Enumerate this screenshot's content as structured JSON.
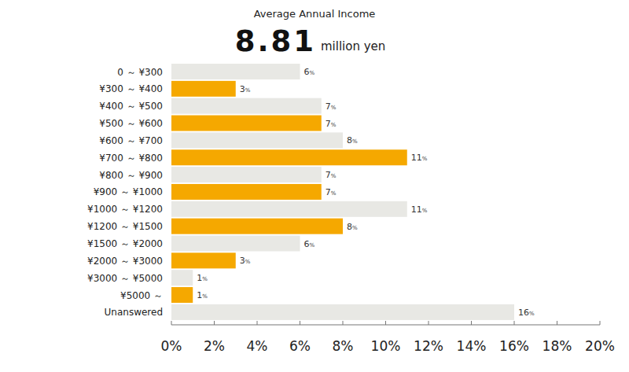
{
  "chart_data": {
    "type": "bar",
    "orientation": "horizontal",
    "title": "Average Annual Income",
    "annotations": [
      {
        "value": 8.81,
        "label": "million yen"
      }
    ],
    "categories": [
      "0 ～ ¥300",
      "¥300 ～ ¥400",
      "¥400 ～ ¥500",
      "¥500 ～ ¥600",
      "¥600 ～ ¥700",
      "¥700 ～ ¥800",
      "¥800 ～ ¥900",
      "¥900 ～ ¥1000",
      "¥1000 ～ ¥1200",
      "¥1200 ～ ¥1500",
      "¥1500 ～ ¥2000",
      "¥2000 ～ ¥3000",
      "¥3000 ～ ¥5000",
      "¥5000 ～",
      "Unanswered"
    ],
    "values": [
      6,
      3,
      7,
      7,
      8,
      11,
      7,
      7,
      11,
      8,
      6,
      3,
      1,
      1,
      16
    ],
    "value_labels": [
      "6%",
      "3%",
      "7%",
      "7%",
      "8%",
      "11%",
      "7%",
      "7%",
      "11%",
      "8%",
      "6%",
      "3%",
      "1%",
      "1%",
      "16%"
    ],
    "data_labels": true,
    "colors": [
      "#e8e8e4",
      "#f5a800",
      "#e8e8e4",
      "#f5a800",
      "#e8e8e4",
      "#f5a800",
      "#e8e8e4",
      "#f5a800",
      "#e8e8e4",
      "#f5a800",
      "#e8e8e4",
      "#f5a800",
      "#e8e8e4",
      "#f5a800",
      "#e8e8e4"
    ],
    "xlim": [
      0,
      20
    ],
    "xticks": [
      {
        "value": 0,
        "label": "0%"
      },
      {
        "value": 2,
        "label": "2%"
      },
      {
        "value": 4,
        "label": "4%"
      },
      {
        "value": 6,
        "label": "6%"
      },
      {
        "value": 8,
        "label": "8%"
      },
      {
        "value": 10,
        "label": "10%"
      },
      {
        "value": 12,
        "label": "12%"
      },
      {
        "value": 14,
        "label": "14%"
      },
      {
        "value": 16,
        "label": "16%"
      },
      {
        "value": 18,
        "label": "18%"
      },
      {
        "value": 20,
        "label": "20%"
      }
    ],
    "grid": false
  }
}
